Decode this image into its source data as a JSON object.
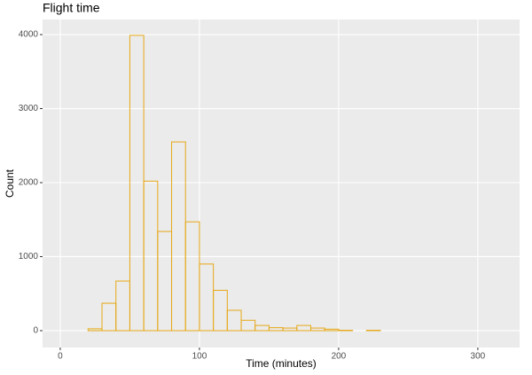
{
  "chart_data": {
    "type": "histogram",
    "title": "Flight time",
    "x_label": "Time (minutes)",
    "y_label": "Count",
    "bins": [
      20,
      30,
      40,
      50,
      60,
      70,
      80,
      90,
      100,
      110,
      120,
      130,
      140,
      150,
      160,
      170,
      180,
      190,
      200,
      210,
      220,
      230
    ],
    "values": [
      25,
      370,
      670,
      3990,
      2020,
      1340,
      2550,
      1470,
      900,
      545,
      275,
      140,
      70,
      40,
      35,
      70,
      35,
      20,
      5,
      0,
      5
    ],
    "color": "#e6a817",
    "xlim": [
      -12.7,
      330
    ],
    "xticks": [
      0,
      100,
      200,
      300
    ],
    "ylim": [
      -228,
      4204
    ],
    "yticks": [
      0,
      1000,
      2000,
      3000,
      4000
    ],
    "grid": true
  }
}
